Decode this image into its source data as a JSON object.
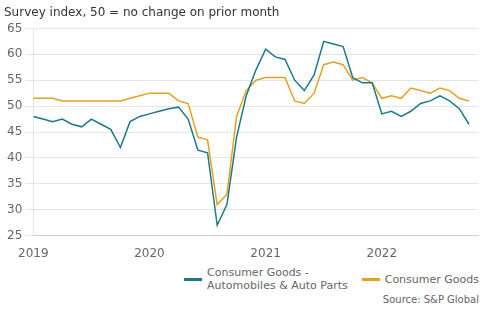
{
  "chart_data": {
    "type": "line",
    "title": "Survey index, 50 = no change on prior month",
    "annotations": [
      "Source: S&P Global"
    ],
    "x": [
      2019.0,
      2019.083,
      2019.167,
      2019.25,
      2019.333,
      2019.417,
      2019.5,
      2019.583,
      2019.667,
      2019.75,
      2019.833,
      2019.917,
      2020.0,
      2020.083,
      2020.167,
      2020.25,
      2020.333,
      2020.417,
      2020.5,
      2020.583,
      2020.667,
      2020.75,
      2020.833,
      2020.917,
      2021.0,
      2021.083,
      2021.167,
      2021.25,
      2021.333,
      2021.417,
      2021.5,
      2021.583,
      2021.667,
      2021.75,
      2021.833,
      2021.917,
      2022.0,
      2022.083,
      2022.167,
      2022.25,
      2022.333,
      2022.417,
      2022.5,
      2022.583,
      2022.667,
      2022.75
    ],
    "series": [
      {
        "name": "Consumer Goods -\nAutomobiles & Auto Parts",
        "color": "#1a7a8a",
        "values": [
          48.0,
          47.5,
          47.0,
          47.5,
          46.5,
          46.0,
          47.5,
          46.5,
          45.5,
          42.0,
          47.0,
          48.0,
          48.5,
          49.0,
          49.5,
          49.8,
          47.5,
          41.5,
          41.0,
          27.0,
          31.0,
          44.0,
          52.0,
          57.0,
          61.0,
          59.5,
          59.0,
          55.0,
          53.0,
          56.0,
          62.5,
          62.0,
          61.5,
          55.5,
          54.5,
          54.5,
          48.5,
          49.0,
          48.0,
          49.0,
          50.5,
          51.0,
          52.0,
          51.0,
          49.5,
          46.5
        ]
      },
      {
        "name": "Consumer Goods",
        "color": "#e8a020",
        "values": [
          51.5,
          51.5,
          51.5,
          51.0,
          51.0,
          51.0,
          51.0,
          51.0,
          51.0,
          51.0,
          51.5,
          52.0,
          52.5,
          52.5,
          52.5,
          51.0,
          50.5,
          44.0,
          43.5,
          31.0,
          33.0,
          48.0,
          53.0,
          55.0,
          55.5,
          55.5,
          55.5,
          51.0,
          50.5,
          52.5,
          58.0,
          58.5,
          58.0,
          55.0,
          55.5,
          54.5,
          51.5,
          52.0,
          51.5,
          53.5,
          53.0,
          52.5,
          53.5,
          53.0,
          51.5,
          51.0
        ]
      }
    ],
    "xlim": [
      2019.0,
      2022.83
    ],
    "xticks": [
      2019,
      2020,
      2021,
      2022
    ],
    "ylim": [
      25,
      65
    ],
    "yticks": [
      25,
      30,
      35,
      40,
      45,
      50,
      55,
      60,
      65
    ],
    "grid": "y",
    "legend": "lower right"
  }
}
